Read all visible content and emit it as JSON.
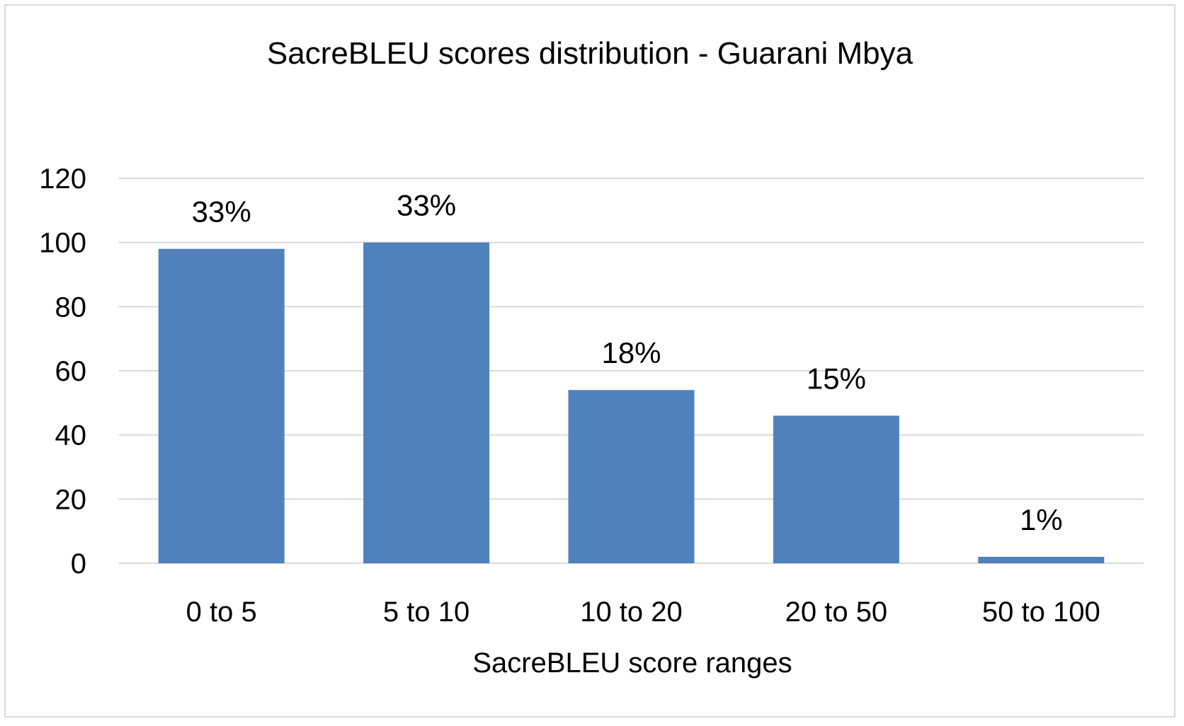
{
  "chart_data": {
    "type": "bar",
    "title": "SacreBLEU scores distribution - Guarani Mbya",
    "xlabel": "SacreBLEU score ranges",
    "ylabel": "",
    "categories": [
      "0 to 5",
      "5 to 10",
      "10 to 20",
      "20 to 50",
      "50 to 100"
    ],
    "values": [
      98,
      100,
      54,
      46,
      2
    ],
    "data_labels": [
      "33%",
      "33%",
      "18%",
      "15%",
      "1%"
    ],
    "ylim": [
      0,
      120
    ],
    "yticks": [
      0,
      20,
      40,
      60,
      80,
      100,
      120
    ],
    "grid": true,
    "legend": "none",
    "bar_color": "#4f81bd",
    "grid_color": "#d9d9d9"
  }
}
